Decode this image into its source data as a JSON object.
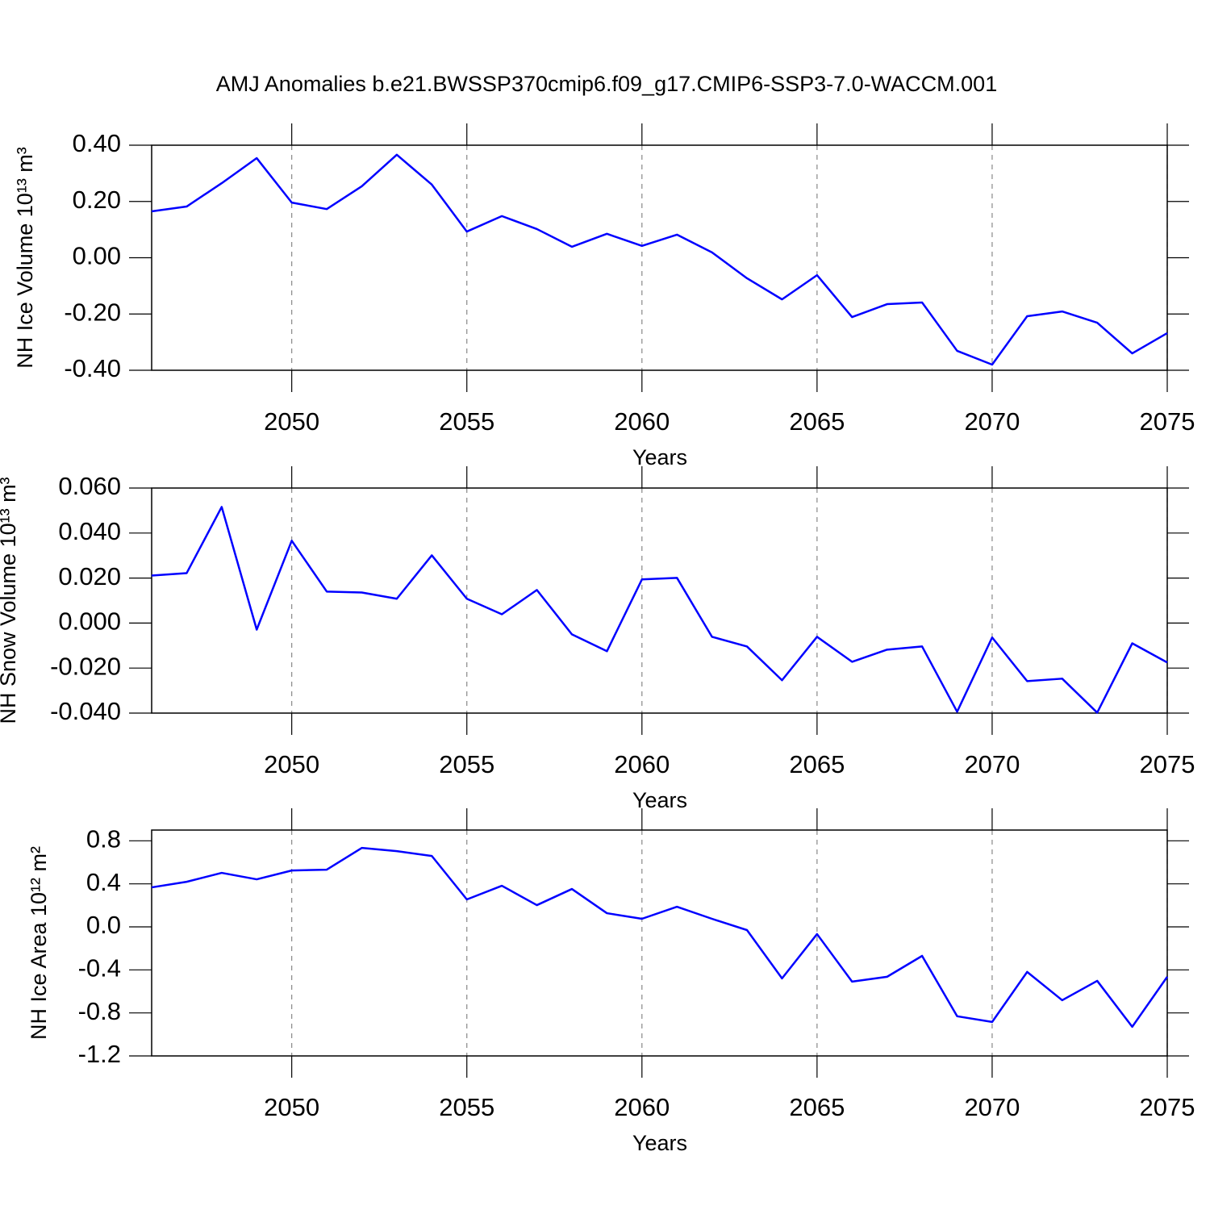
{
  "chart_data": [
    {
      "type": "line",
      "title": "AMJ Anomalies b.e21.BWSSP370cmip6.f09_g17.CMIP6-SSP3-7.0-WACCM.001",
      "xlabel": "Years",
      "ylabel": "NH Ice Volume 10¹³ m³",
      "x": [
        2046,
        2047,
        2048,
        2049,
        2050,
        2051,
        2052,
        2053,
        2054,
        2055,
        2056,
        2057,
        2058,
        2059,
        2060,
        2061,
        2062,
        2063,
        2064,
        2065,
        2066,
        2067,
        2068,
        2069,
        2070,
        2071,
        2072,
        2073,
        2074,
        2075
      ],
      "series": [
        {
          "color": "#0000ff",
          "values": [
            0.165,
            0.182,
            0.265,
            0.354,
            0.196,
            0.173,
            0.254,
            0.366,
            0.26,
            0.093,
            0.148,
            0.102,
            0.039,
            0.085,
            0.042,
            0.082,
            0.019,
            -0.073,
            -0.148,
            -0.062,
            -0.211,
            -0.165,
            -0.159,
            -0.331,
            -0.38,
            -0.208,
            -0.191,
            -0.231,
            -0.34,
            -0.268
          ]
        }
      ],
      "xlim": [
        2046,
        2075
      ],
      "xticks": [
        2050,
        2055,
        2060,
        2065,
        2070,
        2075
      ],
      "ylim": [
        -0.4,
        0.4
      ],
      "yticks": [
        {
          "value": -0.4,
          "label": "-0.40"
        },
        {
          "value": -0.2,
          "label": "-0.20"
        },
        {
          "value": 0,
          "label": "0.00"
        },
        {
          "value": 0.2,
          "label": "0.20"
        },
        {
          "value": 0.4,
          "label": "0.40"
        }
      ],
      "xgrid": true
    },
    {
      "type": "line",
      "xlabel": "Years",
      "ylabel": "NH Snow Volume 10¹³ m³",
      "x": [
        2046,
        2047,
        2048,
        2049,
        2050,
        2051,
        2052,
        2053,
        2054,
        2055,
        2056,
        2057,
        2058,
        2059,
        2060,
        2061,
        2062,
        2063,
        2064,
        2065,
        2066,
        2067,
        2068,
        2069,
        2070,
        2071,
        2072,
        2073,
        2074,
        2075
      ],
      "series": [
        {
          "color": "#0000ff",
          "values": [
            0.0211,
            0.0222,
            0.0516,
            -0.0029,
            0.0366,
            0.014,
            0.0136,
            0.0108,
            0.0301,
            0.0108,
            0.0039,
            0.0147,
            -0.005,
            -0.0125,
            0.0194,
            0.0201,
            -0.0061,
            -0.0104,
            -0.0254,
            -0.0061,
            -0.0172,
            -0.0118,
            -0.0104,
            -0.0394,
            -0.0064,
            -0.0258,
            -0.0247,
            -0.0398,
            -0.009,
            -0.0175
          ]
        }
      ],
      "xlim": [
        2046,
        2075
      ],
      "xticks": [
        2050,
        2055,
        2060,
        2065,
        2070,
        2075
      ],
      "ylim": [
        -0.04,
        0.06
      ],
      "yticks": [
        {
          "value": -0.04,
          "label": "-0.040"
        },
        {
          "value": -0.02,
          "label": "-0.020"
        },
        {
          "value": 0,
          "label": "0.000"
        },
        {
          "value": 0.02,
          "label": "0.020"
        },
        {
          "value": 0.04,
          "label": "0.040"
        },
        {
          "value": 0.06,
          "label": "0.060"
        }
      ],
      "xgrid": true
    },
    {
      "type": "line",
      "xlabel": "Years",
      "ylabel": "NH Ice Area 10¹² m²",
      "x": [
        2046,
        2047,
        2048,
        2049,
        2050,
        2051,
        2052,
        2053,
        2054,
        2055,
        2056,
        2057,
        2058,
        2059,
        2060,
        2061,
        2062,
        2063,
        2064,
        2065,
        2066,
        2067,
        2068,
        2069,
        2070,
        2071,
        2072,
        2073,
        2074,
        2075
      ],
      "series": [
        {
          "color": "#0000ff",
          "values": [
            0.367,
            0.419,
            0.502,
            0.442,
            0.524,
            0.532,
            0.734,
            0.704,
            0.659,
            0.255,
            0.382,
            0.202,
            0.352,
            0.127,
            0.075,
            0.187,
            0.075,
            -0.03,
            -0.479,
            -0.067,
            -0.509,
            -0.464,
            -0.27,
            -0.831,
            -0.884,
            -0.419,
            -0.682,
            -0.502,
            -0.929,
            -0.464
          ]
        }
      ],
      "xlim": [
        2046,
        2075
      ],
      "xticks": [
        2050,
        2055,
        2060,
        2065,
        2070,
        2075
      ],
      "ylim": [
        -1.2,
        0.9
      ],
      "yticks": [
        {
          "value": -1.2,
          "label": "-1.2"
        },
        {
          "value": -0.8,
          "label": "-0.8"
        },
        {
          "value": -0.4,
          "label": "-0.4"
        },
        {
          "value": 0,
          "label": "0.0"
        },
        {
          "value": 0.4,
          "label": "0.4"
        },
        {
          "value": 0.8,
          "label": "0.8"
        }
      ],
      "xgrid": true
    }
  ]
}
